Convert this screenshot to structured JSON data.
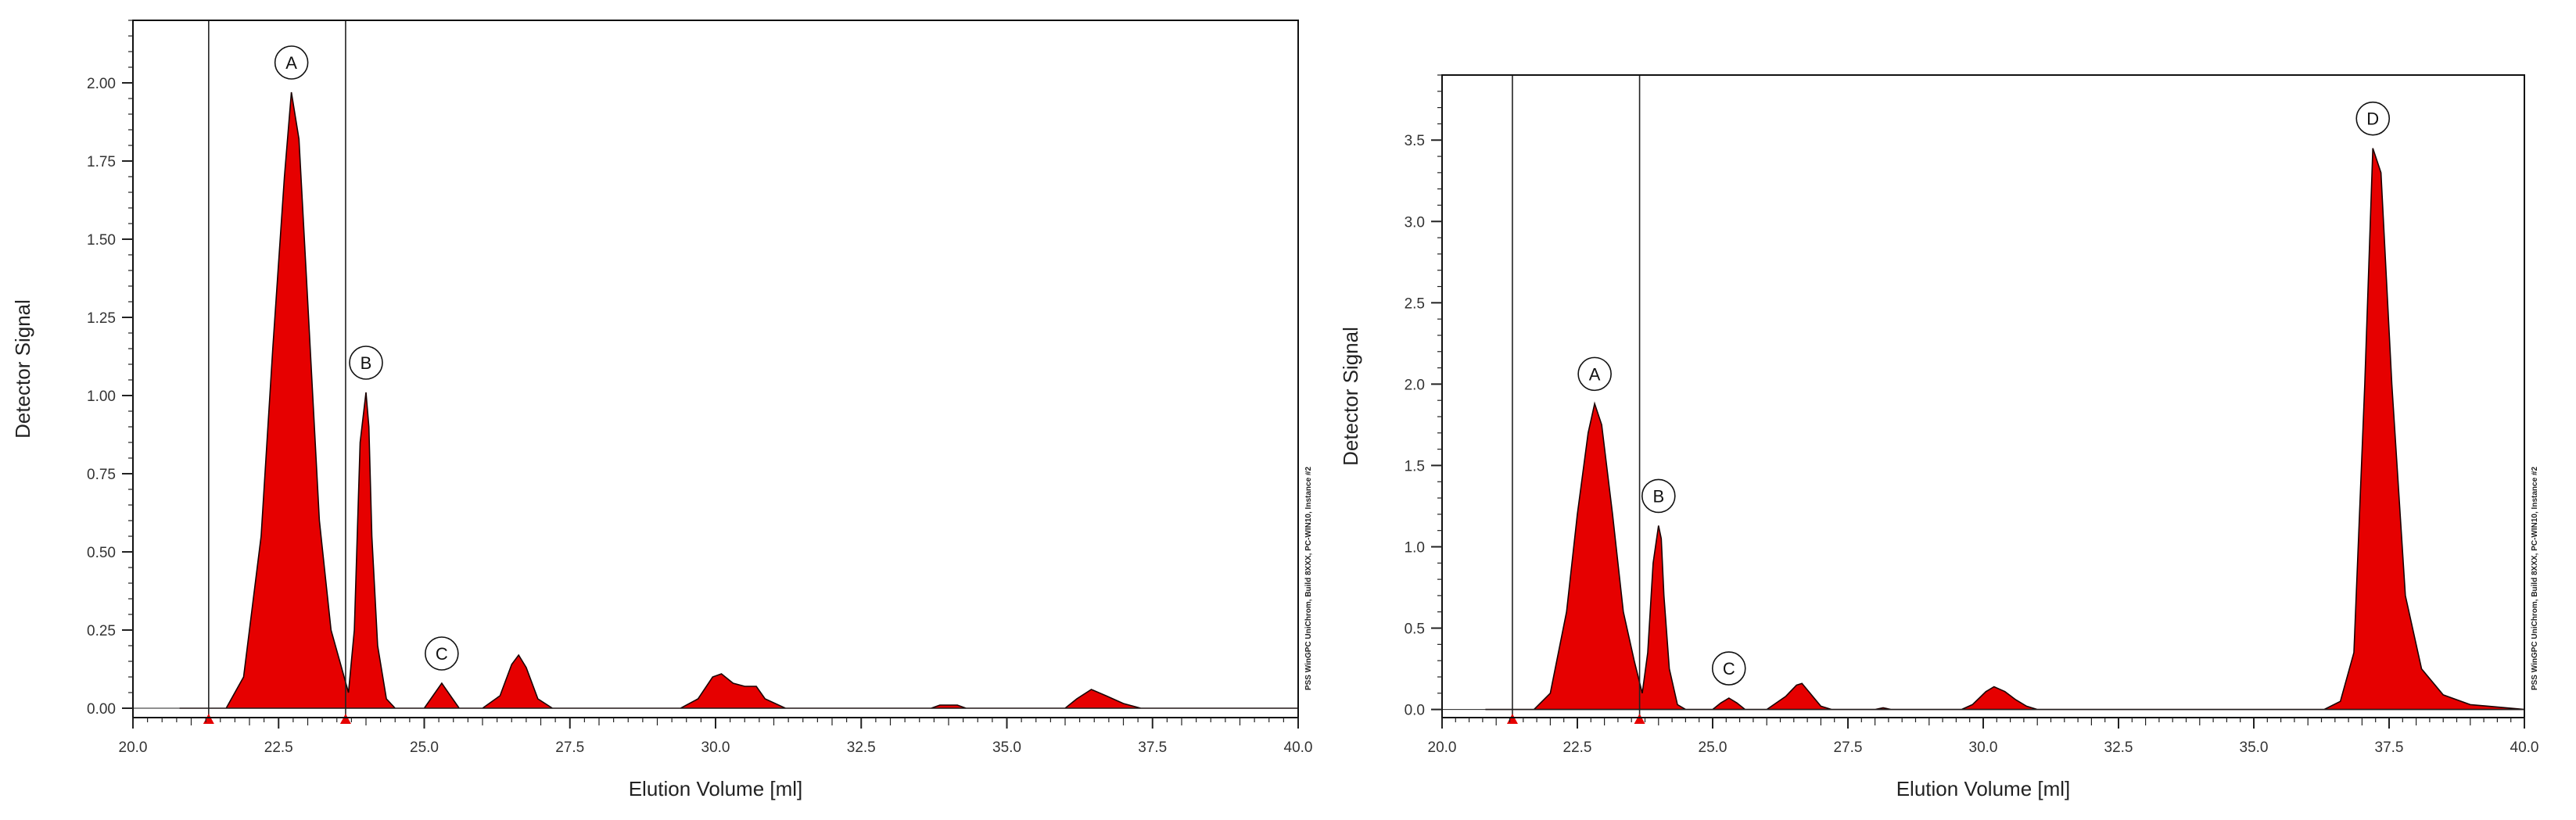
{
  "chart_data": [
    {
      "type": "area",
      "xlabel": "Elution Volume [ml]",
      "ylabel": "Detector Signal",
      "side_note": "PSS WinGPC UniChrom, Build 8XXX, PC-WIN10, Instance #2",
      "xlim": [
        20.0,
        40.0
      ],
      "ylim": [
        -0.03,
        2.2
      ],
      "x_ticks": [
        "20.0",
        "22.5",
        "25.0",
        "27.5",
        "30.0",
        "32.5",
        "35.0",
        "37.5",
        "40.0"
      ],
      "y_ticks": [
        "0.00",
        "0.25",
        "0.50",
        "0.75",
        "1.00",
        "1.25",
        "1.50",
        "1.75",
        "2.00"
      ],
      "y_tick_values": [
        0,
        0.25,
        0.5,
        0.75,
        1.0,
        1.25,
        1.5,
        1.75,
        2.0
      ],
      "fill_color": "#e60000",
      "integration_limits": [
        21.3,
        23.65
      ],
      "series": [
        {
          "x": [
            20.8,
            21.6,
            21.9,
            22.2,
            22.4,
            22.6,
            22.72,
            22.85,
            23.0,
            23.2,
            23.4,
            23.55,
            23.7,
            23.8,
            23.9,
            24.0,
            24.05,
            24.1,
            24.2,
            24.35,
            24.5,
            25.0,
            25.15,
            25.3,
            25.45,
            25.6,
            26.0,
            26.3,
            26.5,
            26.62,
            26.75,
            26.95,
            27.2,
            29.4,
            29.7,
            29.95,
            30.1,
            30.3,
            30.5,
            30.7,
            30.85,
            31.2,
            33.7,
            33.85,
            34.0,
            34.15,
            34.3,
            36.0,
            36.2,
            36.45,
            36.7,
            37.0,
            37.3,
            40.0
          ],
          "y": [
            0.0,
            0.0,
            0.1,
            0.55,
            1.15,
            1.7,
            1.97,
            1.82,
            1.3,
            0.6,
            0.25,
            0.15,
            0.05,
            0.25,
            0.85,
            1.01,
            0.9,
            0.55,
            0.2,
            0.03,
            0.0,
            0.0,
            0.04,
            0.08,
            0.04,
            0.0,
            0.0,
            0.04,
            0.14,
            0.17,
            0.13,
            0.03,
            0.0,
            0.0,
            0.03,
            0.1,
            0.11,
            0.08,
            0.07,
            0.07,
            0.03,
            0.0,
            0.0,
            0.01,
            0.01,
            0.01,
            0.0,
            0.0,
            0.03,
            0.06,
            0.04,
            0.015,
            0.0,
            0.0
          ]
        }
      ],
      "peak_labels": [
        {
          "text": "A",
          "x": 22.72,
          "y": 1.97
        },
        {
          "text": "B",
          "x": 24.0,
          "y": 1.01
        },
        {
          "text": "C",
          "x": 25.3,
          "y": 0.08
        }
      ]
    },
    {
      "type": "area",
      "xlabel": "Elution Volume [ml]",
      "ylabel": "Detector Signal",
      "side_note": "PSS WinGPC UniChrom, Build 8XXX, PC-WIN10, Instance #2",
      "xlim": [
        20.0,
        40.0
      ],
      "ylim": [
        -0.05,
        3.9
      ],
      "x_ticks": [
        "20.0",
        "22.5",
        "25.0",
        "27.5",
        "30.0",
        "32.5",
        "35.0",
        "37.5",
        "40.0"
      ],
      "y_ticks": [
        "0.0",
        "0.5",
        "1.0",
        "1.5",
        "2.0",
        "2.5",
        "3.0",
        "3.5"
      ],
      "y_tick_values": [
        0,
        0.5,
        1.0,
        1.5,
        2.0,
        2.5,
        3.0,
        3.5
      ],
      "fill_color": "#e60000",
      "integration_limits": [
        21.3,
        23.65
      ],
      "series": [
        {
          "x": [
            20.8,
            21.7,
            22.0,
            22.3,
            22.5,
            22.7,
            22.82,
            22.95,
            23.15,
            23.35,
            23.55,
            23.7,
            23.8,
            23.9,
            24.0,
            24.05,
            24.1,
            24.2,
            24.35,
            24.5,
            25.0,
            25.15,
            25.3,
            25.45,
            25.6,
            26.0,
            26.35,
            26.55,
            26.65,
            26.8,
            27.0,
            27.2,
            28.0,
            28.15,
            28.3,
            29.6,
            29.8,
            30.05,
            30.2,
            30.4,
            30.6,
            30.8,
            31.0,
            36.3,
            36.6,
            36.85,
            37.05,
            37.2,
            37.35,
            37.55,
            37.8,
            38.1,
            38.5,
            39.0,
            40.0
          ],
          "y": [
            0.0,
            0.0,
            0.1,
            0.6,
            1.2,
            1.7,
            1.88,
            1.75,
            1.2,
            0.6,
            0.3,
            0.1,
            0.35,
            0.9,
            1.13,
            1.05,
            0.7,
            0.25,
            0.03,
            0.0,
            0.0,
            0.04,
            0.07,
            0.04,
            0.0,
            0.0,
            0.08,
            0.15,
            0.16,
            0.1,
            0.02,
            0.0,
            0.0,
            0.01,
            0.0,
            0.0,
            0.03,
            0.11,
            0.14,
            0.11,
            0.06,
            0.02,
            0.0,
            0.0,
            0.05,
            0.35,
            2.0,
            3.45,
            3.3,
            2.0,
            0.7,
            0.25,
            0.09,
            0.03,
            0.0
          ]
        }
      ],
      "peak_labels": [
        {
          "text": "A",
          "x": 22.82,
          "y": 1.88
        },
        {
          "text": "B",
          "x": 24.0,
          "y": 1.13
        },
        {
          "text": "C",
          "x": 25.3,
          "y": 0.07
        },
        {
          "text": "D",
          "x": 37.2,
          "y": 3.45
        }
      ]
    }
  ]
}
